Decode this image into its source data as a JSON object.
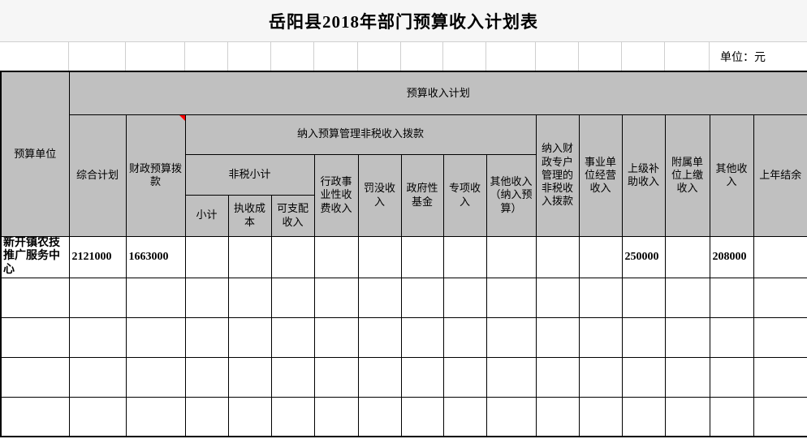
{
  "page": {
    "title": "岳阳县2018年部门预算收入计划表",
    "unit_label": "单位：元"
  },
  "header": {
    "budget_unit": "预算单位",
    "income_plan": "预算收入计划",
    "comprehensive_plan": "综合计划",
    "fiscal_budget_allocation": "财政预算拨款",
    "nontax_in_budget_group": "纳入预算管理非税收入拨款",
    "nontax_subtotal_group": "非税小计",
    "subtotal": "小计",
    "collection_cost": "执收成本",
    "disposable_income": "可支配收入",
    "admin_fee_income": "行政事业性收费收入",
    "penalty_income": "罚没收入",
    "gov_fund": "政府性基金",
    "special_income": "专项收入",
    "other_income_in_budget": "其他收入（纳入预算）",
    "fiscal_special_account": "纳入财政专户管理的非税收入拨款",
    "business_operating_income": "事业单位经营收入",
    "superior_subsidy_income": "上级补助收入",
    "affiliated_unit_income": "附属单位上缴收入",
    "other_income": "其他收入",
    "previous_year_balance": "上年结余"
  },
  "rows": [
    {
      "cells": [
        "新开镇农技推广服务中心",
        "2121000",
        "1663000",
        "",
        "",
        "",
        "",
        "",
        "",
        "",
        "",
        "",
        "",
        "250000",
        "",
        "208000",
        ""
      ]
    },
    {
      "cells": [
        "",
        "",
        "",
        "",
        "",
        "",
        "",
        "",
        "",
        "",
        "",
        "",
        "",
        "",
        "",
        "",
        ""
      ]
    },
    {
      "cells": [
        "",
        "",
        "",
        "",
        "",
        "",
        "",
        "",
        "",
        "",
        "",
        "",
        "",
        "",
        "",
        "",
        ""
      ]
    },
    {
      "cells": [
        "",
        "",
        "",
        "",
        "",
        "",
        "",
        "",
        "",
        "",
        "",
        "",
        "",
        "",
        "",
        "",
        ""
      ]
    },
    {
      "cells": [
        "",
        "",
        "",
        "",
        "",
        "",
        "",
        "",
        "",
        "",
        "",
        "",
        "",
        "",
        "",
        "",
        ""
      ]
    }
  ],
  "icons": {
    "comment_indicator": "red-triangle-cell-comment-marker-on-fiscal-budget-allocation"
  },
  "colors": {
    "header_fill": "#c0c0c0",
    "border": "#000000",
    "gridline": "#cfcfcf",
    "comment_marker": "#ff0000",
    "title_band": "#f6f6f6",
    "text": "#000000"
  }
}
